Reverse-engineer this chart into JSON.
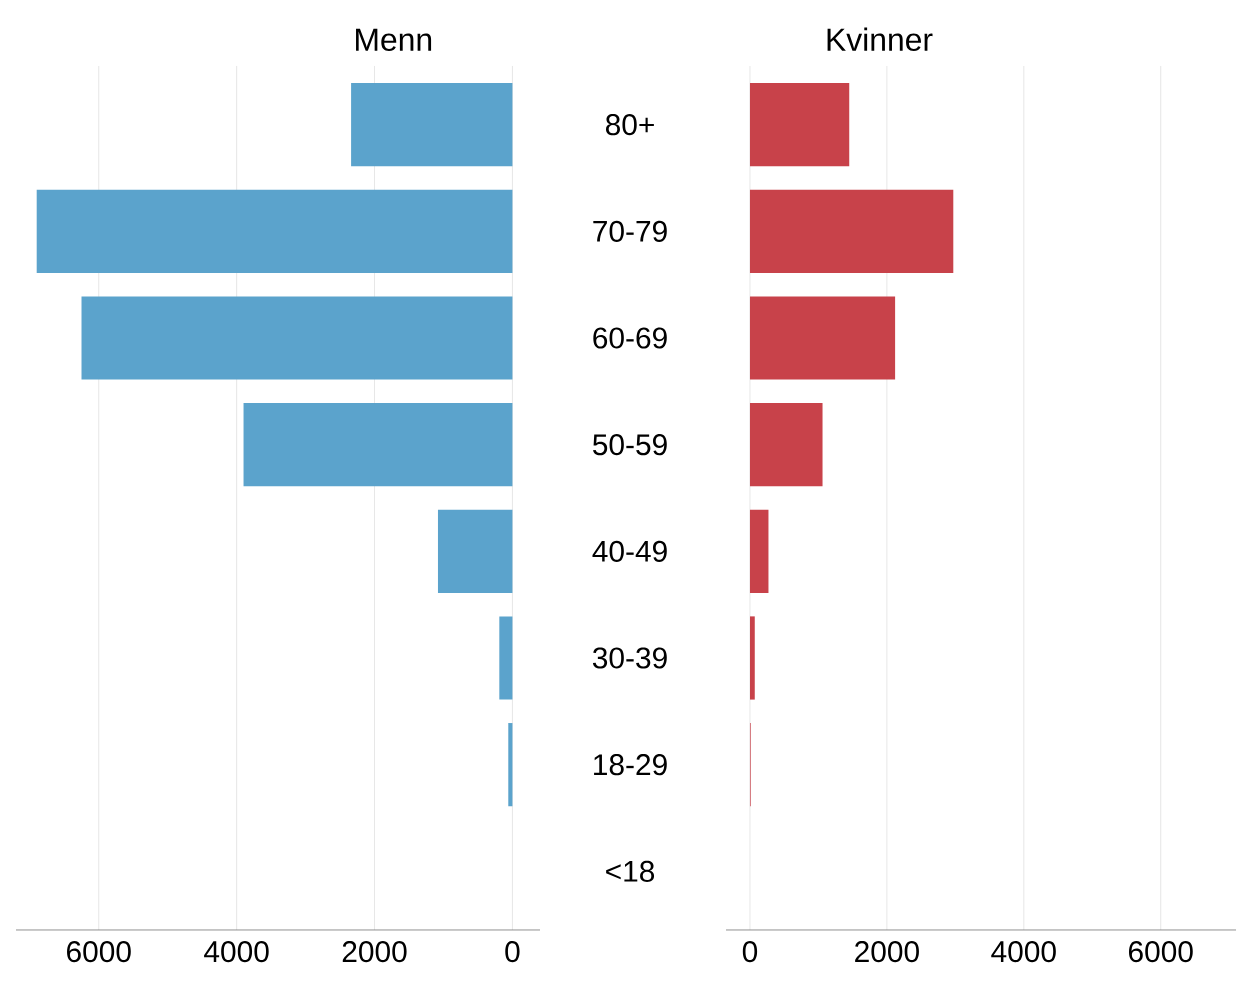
{
  "chart_data": [
    {
      "type": "bar",
      "orientation": "horizontal",
      "title": "Menn",
      "categories": [
        null,
        null,
        null,
        null,
        null,
        null,
        null,
        null
      ],
      "values": [
        2340,
        6900,
        6250,
        3900,
        1080,
        190,
        60,
        0
      ],
      "color": "#5ba3cc",
      "xlim": [
        7200,
        -400
      ],
      "xticks": [
        6000,
        4000,
        2000,
        0
      ],
      "grid": "x",
      "tick_labels": "x"
    },
    {
      "type": "bar",
      "orientation": "horizontal",
      "title": "Kvinner",
      "categories": [
        "80+",
        "70-79",
        "60-69",
        "50-59",
        "40-49",
        "30-39",
        "18-29",
        "<18"
      ],
      "values": [
        1450,
        2970,
        2120,
        1060,
        270,
        70,
        10,
        0
      ],
      "color": "#c8424a",
      "xlim": [
        -350,
        7100
      ],
      "xticks": [
        0,
        2000,
        4000,
        6000
      ],
      "grid": "x"
    }
  ]
}
